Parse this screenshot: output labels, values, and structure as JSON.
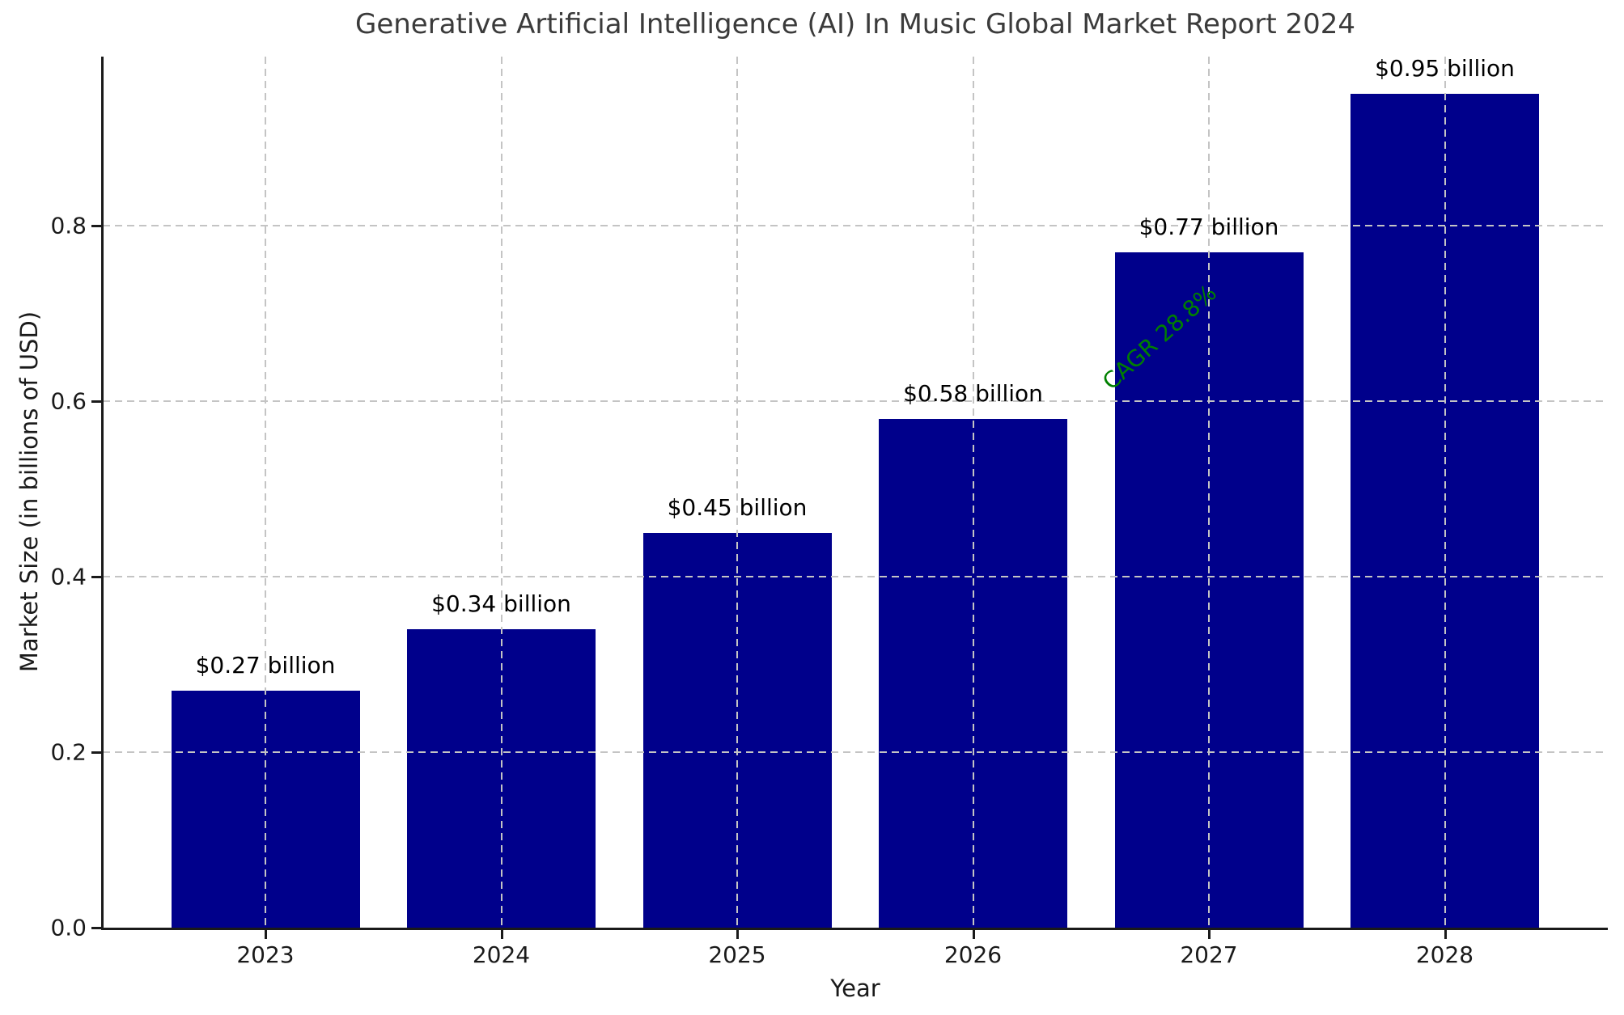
{
  "chart_data": {
    "type": "bar",
    "title": "Generative Artificial Intelligence (AI) In Music Global Market Report 2024",
    "xlabel": "Year",
    "ylabel": "Market Size (in billions of USD)",
    "categories": [
      "2023",
      "2024",
      "2025",
      "2026",
      "2027",
      "2028"
    ],
    "values": [
      0.27,
      0.34,
      0.45,
      0.58,
      0.77,
      0.95
    ],
    "bar_labels": [
      "$0.27 billion",
      "$0.34 billion",
      "$0.45 billion",
      "$0.58 billion",
      "$0.77 billion",
      "$0.95 billion"
    ],
    "ytick_values": [
      0.0,
      0.2,
      0.4,
      0.6,
      0.8
    ],
    "ytick_labels": [
      "0.0",
      "0.2",
      "0.4",
      "0.6",
      "0.8"
    ],
    "ylim": [
      0,
      0.993
    ],
    "grid": "dashed, horizontal at y-ticks and vertical at bar centers, drawn above bars",
    "legend": "none",
    "annotation": {
      "text": "CAGR 28.8%",
      "rotation_deg": -42,
      "color": "#008000"
    },
    "colors": {
      "bar": "#00008B",
      "annotation": "#008000",
      "grid": "#c4c4c4",
      "spine": "#1a1a1a",
      "title": "#3b3b3b",
      "tick_text": "#1a1a1a",
      "bar_label_text": "#000000",
      "background": "#ffffff"
    }
  }
}
